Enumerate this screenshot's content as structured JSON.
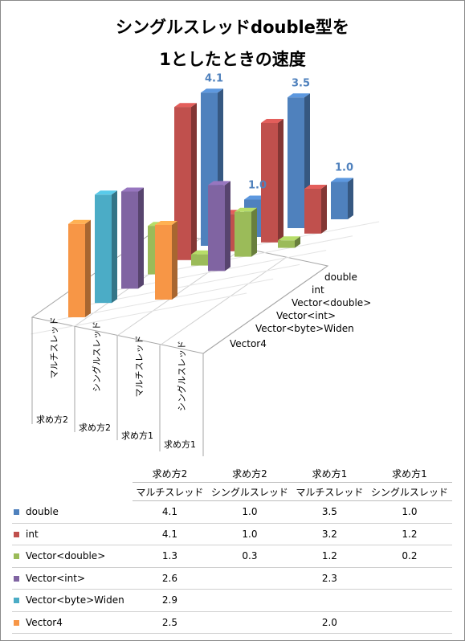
{
  "title_line1": "シングルスレッドdouble型を",
  "title_line2": "1としたときの速度",
  "chart_data": {
    "type": "bar",
    "title": "シングルスレッドdouble型を 1としたときの速度",
    "categories": [
      {
        "method": "求め方2",
        "thread": "マルチスレッド"
      },
      {
        "method": "求め方2",
        "thread": "シングルスレッド"
      },
      {
        "method": "求め方1",
        "thread": "マルチスレッド"
      },
      {
        "method": "求め方1",
        "thread": "シングルスレッド"
      }
    ],
    "series": [
      {
        "name": "double",
        "color": "#4f81bd",
        "values": [
          4.1,
          1.0,
          3.5,
          1.0
        ]
      },
      {
        "name": "int",
        "color": "#c0504d",
        "values": [
          4.1,
          1.0,
          3.2,
          1.2
        ]
      },
      {
        "name": "Vector<double>",
        "color": "#9bbb59",
        "values": [
          1.3,
          0.3,
          1.2,
          0.2
        ]
      },
      {
        "name": "Vector<int>",
        "color": "#8064a2",
        "values": [
          2.6,
          null,
          2.3,
          null
        ]
      },
      {
        "name": "Vector<byte>Widen",
        "color": "#4bacc6",
        "values": [
          2.9,
          null,
          null,
          null
        ]
      },
      {
        "name": "Vector4",
        "color": "#f79646",
        "values": [
          2.5,
          null,
          2.0,
          null
        ]
      }
    ],
    "data_labels": {
      "series": "double",
      "values": [
        "4.1",
        "1.0",
        "3.5",
        "1.0"
      ]
    },
    "depth_axis_labels": [
      "double",
      "int",
      "Vector<double>",
      "Vector<int>",
      "Vector<byte>Widen",
      "Vector4"
    ]
  },
  "table": {
    "header_methods": [
      "求め方2",
      "求め方2",
      "求め方1",
      "求め方1"
    ],
    "header_threads": [
      "マルチスレッド",
      "シングルスレッド",
      "マルチスレッド",
      "シングルスレッド"
    ],
    "rows": [
      {
        "name": "double",
        "color": "#4f81bd",
        "cells": [
          "4.1",
          "1.0",
          "3.5",
          "1.0"
        ]
      },
      {
        "name": "int",
        "color": "#c0504d",
        "cells": [
          "4.1",
          "1.0",
          "3.2",
          "1.2"
        ]
      },
      {
        "name": "Vector<double>",
        "color": "#9bbb59",
        "cells": [
          "1.3",
          "0.3",
          "1.2",
          "0.2"
        ]
      },
      {
        "name": "Vector<int>",
        "color": "#8064a2",
        "cells": [
          "2.6",
          "",
          "2.3",
          ""
        ]
      },
      {
        "name": "Vector<byte>Widen",
        "color": "#4bacc6",
        "cells": [
          "2.9",
          "",
          "",
          ""
        ]
      },
      {
        "name": "Vector4",
        "color": "#f79646",
        "cells": [
          "2.5",
          "",
          "2.0",
          ""
        ]
      }
    ]
  }
}
